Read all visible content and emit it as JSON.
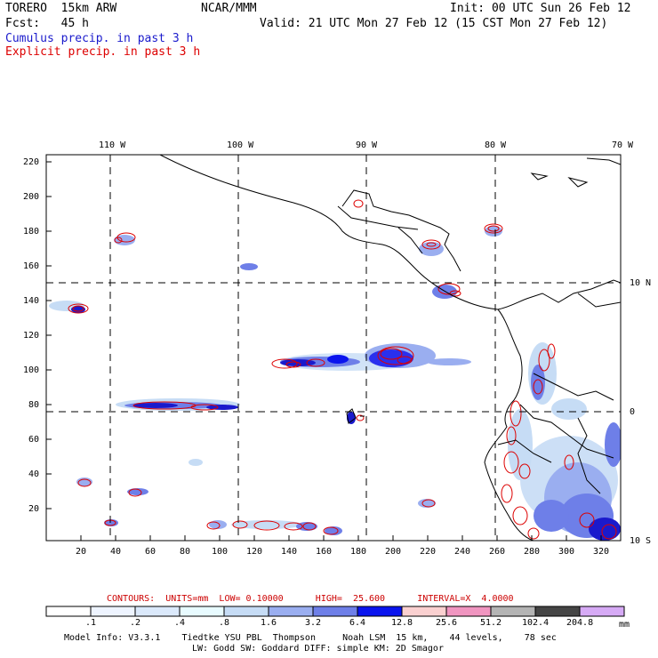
{
  "header": {
    "model": "TORERO  15km ARW",
    "org": "NCAR/MMM",
    "init": "Init: 00 UTC Sun 26 Feb 12",
    "fcst": "Fcst:   45 h",
    "valid": "Valid: 21 UTC Mon 27 Feb 12 (15 CST Mon 27 Feb 12)",
    "legend_cumulus": "Cumulus precip. in past 3 h",
    "legend_explicit": "Explicit precip. in past 3 h"
  },
  "colors": {
    "cumulus": "#1a1acc",
    "explicit": "#dd0000",
    "contour_label": "#cc0000"
  },
  "axes": {
    "top_lon": [
      "110 W",
      "100 W",
      "90 W",
      "80 W",
      "70 W"
    ],
    "right_lat": [
      "10 N",
      "0",
      "10 S"
    ],
    "left_ticks": [
      "220",
      "200",
      "180",
      "160",
      "140",
      "120",
      "100",
      "80",
      "60",
      "40",
      "20"
    ],
    "bottom_ticks": [
      "20",
      "40",
      "60",
      "80",
      "100",
      "120",
      "140",
      "160",
      "180",
      "200",
      "220",
      "240",
      "260",
      "280",
      "300",
      "320"
    ]
  },
  "contour_info": "CONTOURS:  UNITS=mm  LOW= 0.10000      HIGH=  25.600      INTERVAL=X  4.0000",
  "colorbar": {
    "labels": [
      ".1",
      ".2",
      ".4",
      ".8",
      "1.6",
      "3.2",
      "6.4",
      "12.8",
      "25.6",
      "51.2",
      "102.4",
      "204.8"
    ],
    "unit": "mm",
    "colors": [
      "#ffffff",
      "#eef4ff",
      "#dbe9fb",
      "#e8fbff",
      "#c6dcf5",
      "#9aaef0",
      "#6e7fe8",
      "#0a14ee",
      "#fad0d0",
      "#f095c0",
      "#b4b4b4",
      "#454545",
      "#d6aaf5"
    ]
  },
  "model_info_1": "Model Info: V3.3.1    Tiedtke YSU PBL  Thompson     Noah LSM  15 km,    44 levels,    78 sec",
  "model_info_2": "LW: Godd SW: Goddard DIFF: simple KM: 2D Smagor"
}
